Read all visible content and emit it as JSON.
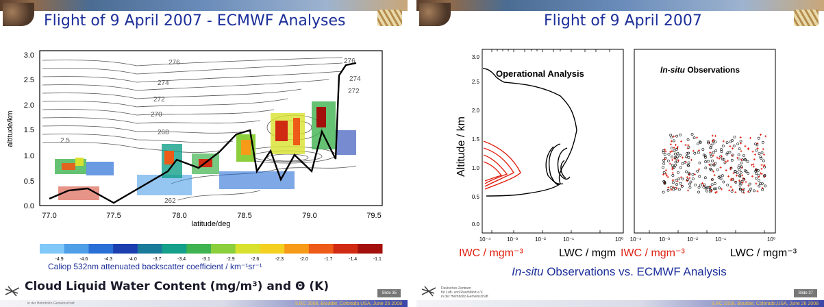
{
  "left_slide": {
    "title": "Flight of 9 April 2007 - ECMWF Analyses",
    "y_axis_label": "altitude/km",
    "x_axis_label": "latitude/deg",
    "y_ticks": [
      "0.0",
      "0.5",
      "1.0",
      "1.5",
      "2.0",
      "2.5",
      "3.0"
    ],
    "x_ticks": [
      "77.0",
      "77.5",
      "78.0",
      "78.5",
      "79.0",
      "79.5"
    ],
    "contour_labels": [
      "276",
      "274",
      "272",
      "270",
      "268",
      "276",
      "274",
      "272",
      "2.5",
      "262"
    ],
    "colorbar_ticks": [
      "-4.9",
      "-4.6",
      "-4.3",
      "-4.0",
      "-3.7",
      "-3.4",
      "-3.1",
      "-2.9",
      "-2.6",
      "-2.3",
      "-2.0",
      "-1.7",
      "-1.4",
      "-1.1"
    ],
    "colorbar_colors": [
      "#7fc8f8",
      "#4f9fe8",
      "#2a6fd6",
      "#1c3fb0",
      "#1a7a9a",
      "#14a08a",
      "#3fb34f",
      "#8ccf3c",
      "#d8e22e",
      "#f4d020",
      "#f79a18",
      "#ee5a17",
      "#d02a12",
      "#a3100c"
    ],
    "colorbar_caption": "Caliop 532nm attenuated backscatter coefficient / km⁻¹sr⁻¹",
    "bottom_title": "Cloud Liquid Water Content (mg/m³) and Θ (K)",
    "slide_number": "Slide 35",
    "footer_text": "ILRC 2008, Boulder, Colorado,USA, June 26 2008",
    "footer_small": "in der Helmholtz-Gemeinschaft"
  },
  "right_slide": {
    "title": "Flight of 9 April 2007",
    "y_axis_label": "Altitude / km",
    "y_ticks": [
      "0.0",
      "0.5",
      "1.0",
      "1.5",
      "2.0",
      "2.5",
      "3.0"
    ],
    "x_ticks": [
      "10⁻⁴",
      "10⁻³",
      "10⁻²",
      "10⁻¹",
      "10⁰"
    ],
    "panel_left_label": "Operational Analysis",
    "panel_right_label_italic": "In-situ",
    "panel_right_label_rest": " Observations",
    "xlabel_iwc_1": "IWC / mgm⁻³",
    "xlabel_lwc_1": "LWC / mgm",
    "xlabel_iwc_2": "IWC / mgm⁻³",
    "xlabel_lwc_2": "LWC / mgm⁻³",
    "bottom_title_italic": "In-situ",
    "bottom_title_rest": " Observations vs. ECMWF Analysis",
    "dlr_name_1": "Deutsches Zentrum",
    "dlr_name_2": "für Luft- und Raumfahrt e.V.",
    "dlr_name_3": "in der Helmholtz-Gemeinschaft",
    "slide_number": "Slide 37",
    "footer_text": "ILRC 2008, Boulder, Colorado,USA, June 26 2008"
  },
  "colors": {
    "title_blue": "#1d2f9a",
    "iwc_red": "#e02010",
    "lwc_black": "#000000",
    "footer_yellow": "#f5c542"
  }
}
